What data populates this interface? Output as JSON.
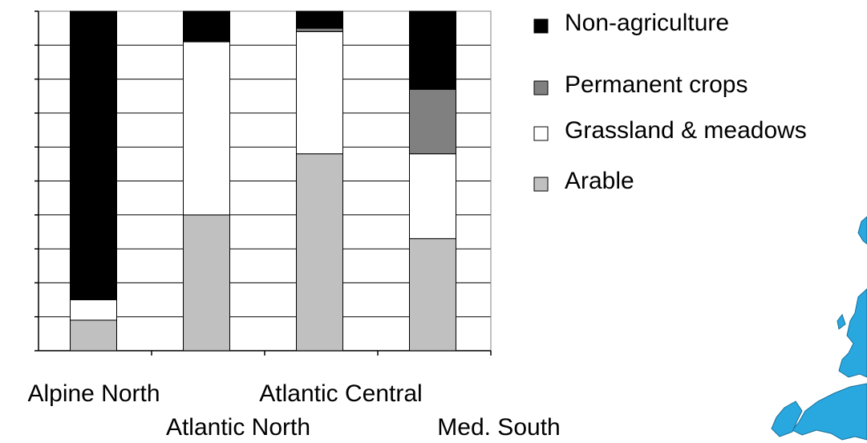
{
  "chart_data": {
    "type": "bar",
    "stacked": true,
    "percent_stacked": true,
    "categories": [
      "Alpine North",
      "Atlantic North",
      "Atlantic Central",
      "Med. South"
    ],
    "series": [
      {
        "name": "Arable",
        "values": [
          9,
          40,
          58,
          33
        ]
      },
      {
        "name": "Grassland & meadows",
        "values": [
          6,
          51,
          36,
          25
        ]
      },
      {
        "name": "Permanent crops",
        "values": [
          0,
          0,
          1,
          19
        ]
      },
      {
        "name": "Non-agriculture",
        "values": [
          85,
          9,
          5,
          23
        ]
      }
    ],
    "ylim": [
      0,
      100
    ],
    "grid": true,
    "legend_position": "right",
    "colors": {
      "Arable": "#c0c0c0",
      "Grassland & meadows": "#ffffff",
      "Permanent crops": "#808080",
      "Non-agriculture": "#000000"
    },
    "legend_order": [
      "Non-agriculture",
      "Permanent crops",
      "Grassland & meadows",
      "Arable"
    ]
  },
  "map_decoration": {
    "icon": "europe-map-icon",
    "color": "#29a8e0"
  }
}
